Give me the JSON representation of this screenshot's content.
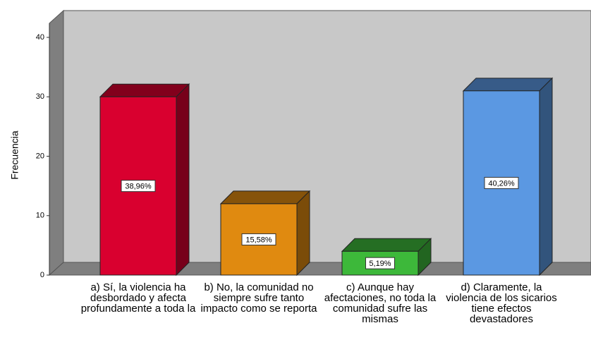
{
  "chart_data": {
    "type": "bar3d",
    "y_label": "Frecuencia",
    "categories": [
      "a) Sí, la violencia ha desbordado y afecta profundamente a toda la",
      "b) No, la comunidad no siempre sufre tanto impacto como se reporta",
      "c) Aunque hay afectaciones, no toda la comunidad sufre las mismas",
      "d) Claramente, la violencia de los sicarios tiene efectos devastadores"
    ],
    "values": [
      30,
      12,
      4,
      31
    ],
    "percent_values": [
      38.96,
      15.58,
      5.19,
      40.26
    ],
    "percent_labels": [
      "38,96%",
      "15,58%",
      "5,19%",
      "40,26%"
    ],
    "colors": [
      "#d9002f",
      "#e08a10",
      "#3db83a",
      "#5b98e2"
    ],
    "ylim": [
      0,
      40
    ],
    "yticks": [
      0,
      10,
      20,
      30,
      40
    ]
  }
}
